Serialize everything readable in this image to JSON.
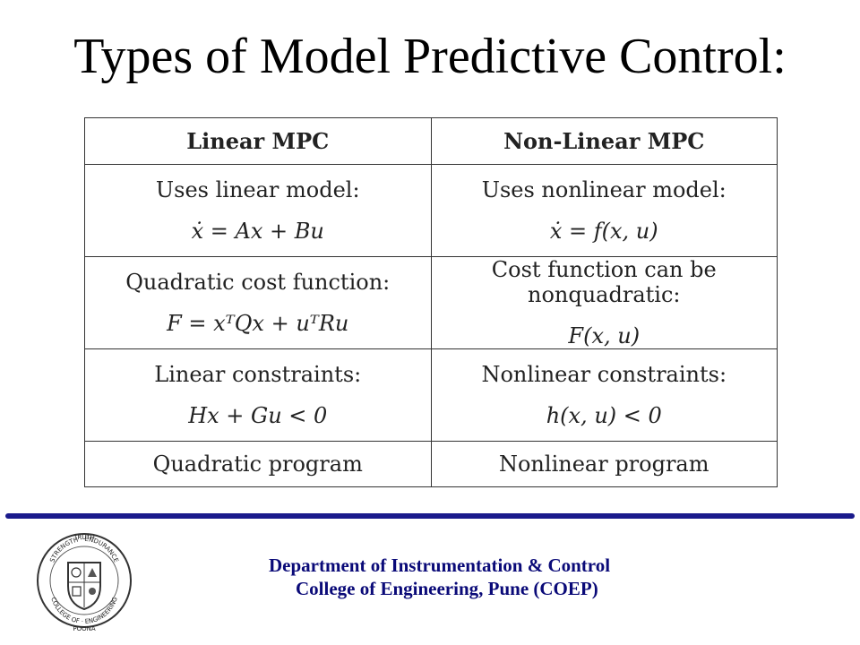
{
  "title": "Types of Model Predictive Control:",
  "table": {
    "headers": [
      "Linear MPC",
      "Non-Linear MPC"
    ],
    "rows": [
      {
        "left": {
          "text": "Uses linear model:",
          "formula": "ẋ = Ax + Bu"
        },
        "right": {
          "text": "Uses nonlinear model:",
          "formula": "ẋ = f(x, u)"
        }
      },
      {
        "left": {
          "text": "Quadratic cost function:",
          "formula": "F = xᵀQx + uᵀRu"
        },
        "right": {
          "text": "Cost function can be nonquadratic:",
          "formula": "F(x, u)"
        }
      },
      {
        "left": {
          "text": "Linear constraints:",
          "formula": "Hx + Gu < 0"
        },
        "right": {
          "text": "Nonlinear constraints:",
          "formula": "h(x, u) < 0"
        }
      },
      {
        "left": {
          "text": "Quadratic program"
        },
        "right": {
          "text": "Nonlinear program"
        }
      }
    ]
  },
  "footer": {
    "line1": "Department of Instrumentation & Control",
    "line2": "College of Engineering, Pune (COEP)",
    "accent_color": "#1a1a8c",
    "text_color": "#0a0a78"
  },
  "logo": {
    "icon": "coep-crest-icon",
    "top_text": "TRUTH",
    "left_text": "STRENGTH",
    "right_text": "ENDURANCE",
    "lower_left_text": "COLLEGE OF",
    "lower_right_text": "ENGINEERING",
    "bottom_text": "POONA"
  }
}
